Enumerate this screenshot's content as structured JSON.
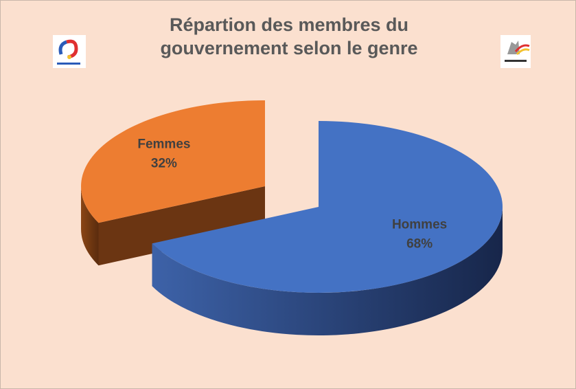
{
  "chart_data": {
    "type": "pie3d",
    "title": "Répartion des membres du gouvernement selon le genre",
    "categories": [
      "Hommes",
      "Femmes"
    ],
    "values": [
      68,
      32
    ],
    "value_labels": [
      "68%",
      "32%"
    ],
    "colors": [
      "#4472c4",
      "#ed7d31"
    ],
    "side_colors": [
      "#1f3360",
      "#6b3512"
    ]
  }
}
